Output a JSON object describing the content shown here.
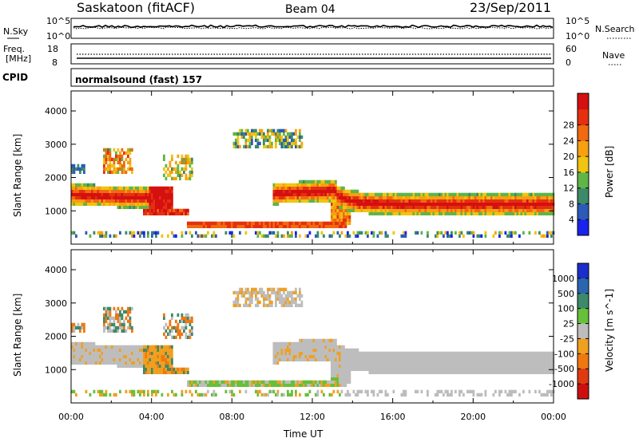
{
  "header": {
    "site": "Saskatoon (fitACF)",
    "beam": "Beam 04",
    "date": "23/Sep/2011"
  },
  "strips": {
    "nsky": {
      "label": "N.Sky",
      "left_ticks": [
        "10^5",
        "10^0"
      ],
      "right_ticks": [
        "10^5",
        "10^0"
      ],
      "right_label": "N.Search"
    },
    "freq": {
      "label_line1": "Freq.",
      "label_line2": "[MHz]",
      "left_ticks": [
        "18",
        "8"
      ],
      "right_ticks": [
        "60",
        "0"
      ],
      "right_label": "Nave"
    },
    "cpid": {
      "label": "CPID",
      "text": "normalsound (fast) 157"
    }
  },
  "chart_data": [
    {
      "type": "heatmap",
      "name": "power-panel",
      "ylabel": "Slant Range [km]",
      "xlabel": "",
      "yticks": [
        "1000",
        "2000",
        "3000",
        "4000"
      ],
      "ylim": [
        0,
        4600
      ],
      "xlim": [
        0,
        24
      ],
      "colorbar": {
        "label": "Power [dB]",
        "ticks": [
          "4",
          "8",
          "12",
          "16",
          "20",
          "24",
          "28"
        ],
        "colors": [
          "#1a22ee",
          "#2b5ab8",
          "#3c8a6a",
          "#5fb548",
          "#f0c410",
          "#f7a010",
          "#f06a10",
          "#e53010",
          "#d41010"
        ]
      },
      "features": [
        {
          "description": "main band",
          "x_hours": [
            0,
            24
          ],
          "range_km": [
            900,
            1700
          ]
        },
        {
          "description": "near range band",
          "x_hours": [
            6,
            13.5
          ],
          "range_km": [
            400,
            650
          ]
        },
        {
          "description": "far range",
          "x_hours": [
            2,
            13
          ],
          "range_km": [
            2000,
            3500
          ]
        }
      ]
    },
    {
      "type": "heatmap",
      "name": "velocity-panel",
      "ylabel": "Slant Range [km]",
      "xlabel": "Time UT",
      "yticks": [
        "1000",
        "2000",
        "3000",
        "4000"
      ],
      "ylim": [
        0,
        4600
      ],
      "xlim": [
        0,
        24
      ],
      "xticks": [
        "00:00",
        "04:00",
        "08:00",
        "12:00",
        "16:00",
        "20:00",
        "00:00"
      ],
      "colorbar": {
        "label": "Velocity [m s^-1]",
        "ticks": [
          "1000",
          "500",
          "100",
          "25",
          "-25",
          "-100",
          "-500",
          "-1000"
        ],
        "colors": [
          "#1a2ecc",
          "#2a66b0",
          "#3c8a6a",
          "#66c03a",
          "#bdbdbd",
          "#f0a020",
          "#f07810",
          "#e03a10",
          "#cc1010"
        ]
      }
    }
  ]
}
